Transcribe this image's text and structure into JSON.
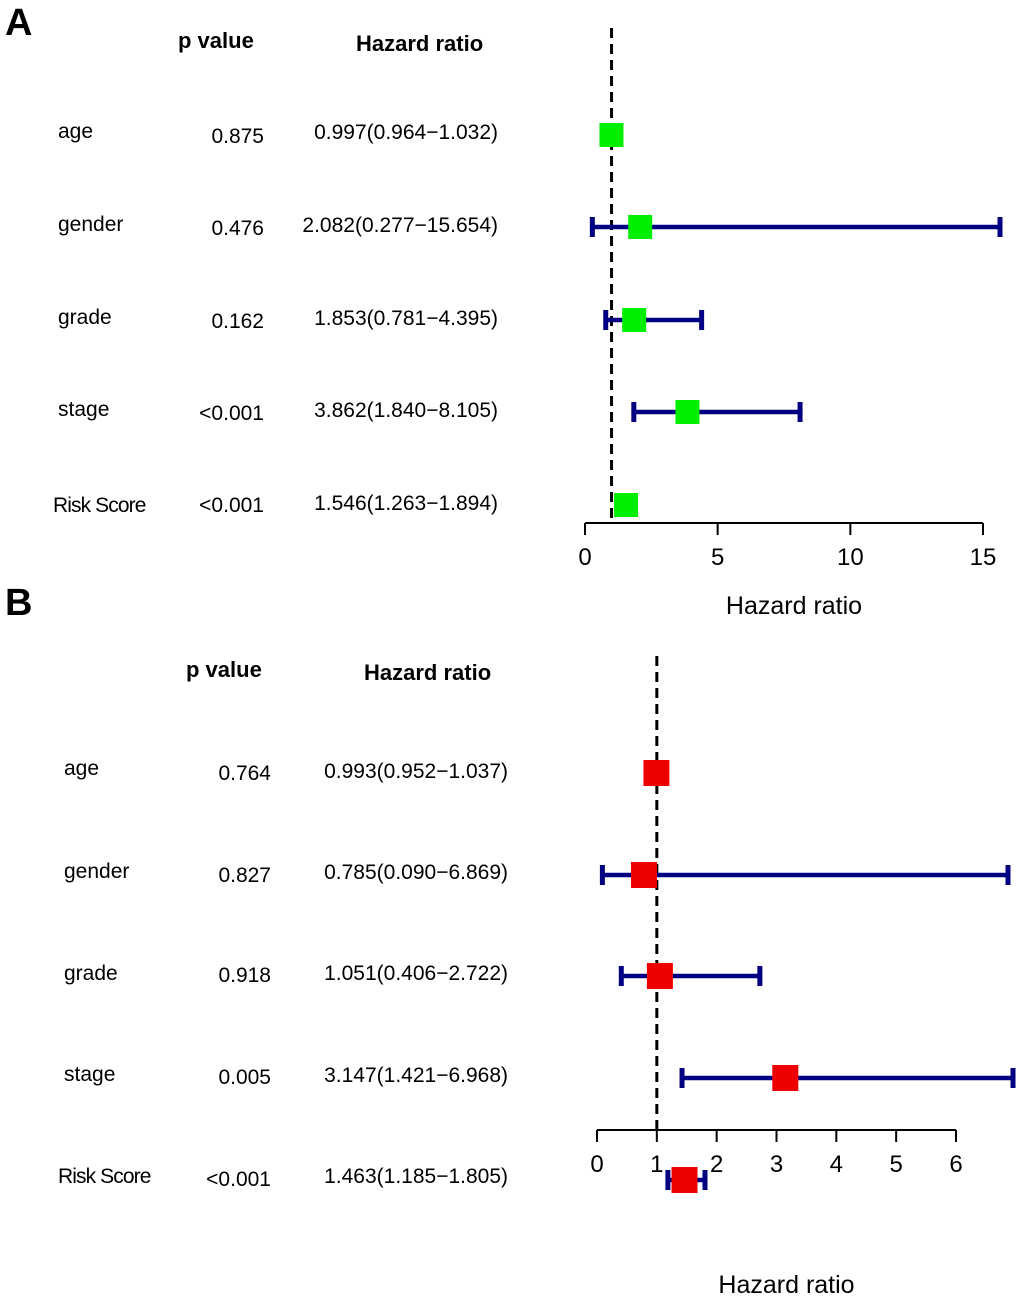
{
  "panels": [
    {
      "letter": "A",
      "pvalue_header": "p value",
      "hr_header": "Hazard ratio",
      "rows": [
        {
          "label": "age",
          "p": "0.875",
          "hr_text": "0.997(0.964−1.032)"
        },
        {
          "label": "gender",
          "p": "0.476",
          "hr_text": "2.082(0.277−15.654)"
        },
        {
          "label": "grade",
          "p": "0.162",
          "hr_text": "1.853(0.781−4.395)"
        },
        {
          "label": "stage",
          "p": "<0.001",
          "hr_text": "3.862(1.840−8.105)"
        },
        {
          "label": "Risk Score",
          "p": "<0.001",
          "hr_text": "1.546(1.263−1.894)"
        }
      ]
    },
    {
      "letter": "B",
      "pvalue_header": "p value",
      "hr_header": "Hazard ratio",
      "rows": [
        {
          "label": "age",
          "p": "0.764",
          "hr_text": "0.993(0.952−1.037)"
        },
        {
          "label": "gender",
          "p": "0.827",
          "hr_text": "0.785(0.090−6.869)"
        },
        {
          "label": "grade",
          "p": "0.918",
          "hr_text": "1.051(0.406−2.722)"
        },
        {
          "label": "stage",
          "p": "0.005",
          "hr_text": "3.147(1.421−6.968)"
        },
        {
          "label": "Risk Score",
          "p": "<0.001",
          "hr_text": "1.463(1.185−1.805)"
        }
      ]
    }
  ],
  "chart_data": [
    {
      "type": "forest",
      "panel": "A",
      "xlabel": "Hazard ratio",
      "xlim": [
        0,
        15
      ],
      "xticks": [
        0,
        5,
        10,
        15
      ],
      "reference_line": 1,
      "marker_color": "#00ee00",
      "ci_color": "#000080",
      "categories": [
        "age",
        "gender",
        "grade",
        "stage",
        "Risk Score"
      ],
      "hr": [
        0.997,
        2.082,
        1.853,
        3.862,
        1.546
      ],
      "lower": [
        0.964,
        0.277,
        0.781,
        1.84,
        1.263
      ],
      "upper": [
        1.032,
        15.654,
        4.395,
        8.105,
        1.894
      ]
    },
    {
      "type": "forest",
      "panel": "B",
      "xlabel": "Hazard ratio",
      "xlim": [
        0,
        6
      ],
      "xticks": [
        0,
        1,
        2,
        3,
        4,
        5,
        6
      ],
      "reference_line": 1,
      "marker_color": "#ee0000",
      "ci_color": "#000080",
      "categories": [
        "age",
        "gender",
        "grade",
        "stage",
        "Risk Score"
      ],
      "hr": [
        0.993,
        0.785,
        1.051,
        3.147,
        1.463
      ],
      "lower": [
        0.952,
        0.09,
        0.406,
        1.421,
        1.185
      ],
      "upper": [
        1.037,
        6.869,
        2.722,
        6.968,
        1.805
      ]
    }
  ]
}
